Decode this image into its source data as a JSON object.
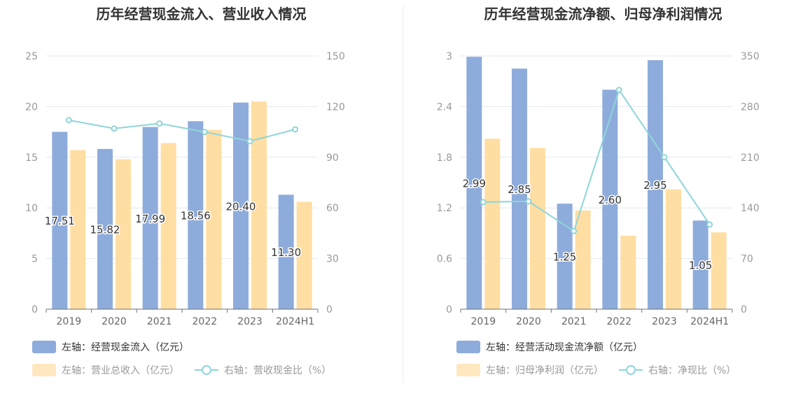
{
  "charts": {
    "left": {
      "title": "历年经营现金流入、营业收入情况",
      "legend": {
        "bar1": "左轴：经营现金流入（亿元）",
        "bar2": "左轴：营业总收入（亿元）",
        "line": "右轴：营收现金比（%）"
      }
    },
    "right": {
      "title": "历年经营现金流净额、归母净利润情况",
      "legend": {
        "bar1": "左轴：经营活动现金流净额（亿元）",
        "bar2": "左轴：归母净利润（亿元）",
        "line": "右轴：净现比（%）"
      }
    }
  },
  "colors": {
    "bar1": "#8eacdb",
    "bar2": "#ffdea3",
    "line": "#8fd5d9",
    "axis": "#999999",
    "grid": "#e3e7f2"
  },
  "chart_data": [
    {
      "type": "bar",
      "title": "历年经营现金流入、营业收入情况",
      "categories": [
        "2019",
        "2020",
        "2021",
        "2022",
        "2023",
        "2024H1"
      ],
      "left_axis": {
        "ylim": [
          0,
          25
        ],
        "ticks": [
          "0",
          "5",
          "10",
          "15",
          "20",
          "25"
        ]
      },
      "right_axis": {
        "ylim": [
          0,
          150
        ],
        "ticks": [
          "0",
          "30",
          "60",
          "90",
          "120",
          "150"
        ]
      },
      "series": [
        {
          "name": "左轴：经营现金流入（亿元）",
          "axis": "left",
          "kind": "bar",
          "values": [
            17.51,
            15.82,
            17.99,
            18.56,
            20.4,
            11.3
          ],
          "labels": [
            "17.51",
            "15.82",
            "17.99",
            "18.56",
            "20.40",
            "11.30"
          ]
        },
        {
          "name": "左轴：营业总收入（亿元）",
          "axis": "left",
          "kind": "bar",
          "values": [
            15.7,
            14.8,
            16.4,
            17.7,
            20.5,
            10.6
          ]
        },
        {
          "name": "右轴：营收现金比（%）",
          "axis": "right",
          "kind": "line",
          "values": [
            112,
            107,
            110,
            105,
            99.5,
            106.5
          ]
        }
      ],
      "grid": true,
      "legend_position": "bottom-left"
    },
    {
      "type": "bar",
      "title": "历年经营现金流净额、归母净利润情况",
      "categories": [
        "2019",
        "2020",
        "2021",
        "2022",
        "2023",
        "2024H1"
      ],
      "left_axis": {
        "ylim": [
          0,
          3
        ],
        "ticks": [
          "0",
          "0.6",
          "1.2",
          "1.8",
          "2.4",
          "3"
        ]
      },
      "right_axis": {
        "ylim": [
          0,
          350
        ],
        "ticks": [
          "0",
          "70",
          "140",
          "210",
          "280",
          "350"
        ]
      },
      "series": [
        {
          "name": "左轴：经营活动现金流净额（亿元）",
          "axis": "left",
          "kind": "bar",
          "values": [
            2.99,
            2.85,
            1.25,
            2.6,
            2.95,
            1.05
          ],
          "labels": [
            "2.99",
            "2.85",
            "1.25",
            "2.60",
            "2.95",
            "1.05"
          ]
        },
        {
          "name": "左轴：归母净利润（亿元）",
          "axis": "left",
          "kind": "bar",
          "values": [
            2.02,
            1.91,
            1.17,
            0.87,
            1.42,
            0.91
          ]
        },
        {
          "name": "右轴：净现比（%）",
          "axis": "right",
          "kind": "line",
          "values": [
            148,
            149,
            108,
            303,
            210,
            117
          ]
        }
      ],
      "grid": true,
      "legend_position": "bottom-left"
    }
  ]
}
